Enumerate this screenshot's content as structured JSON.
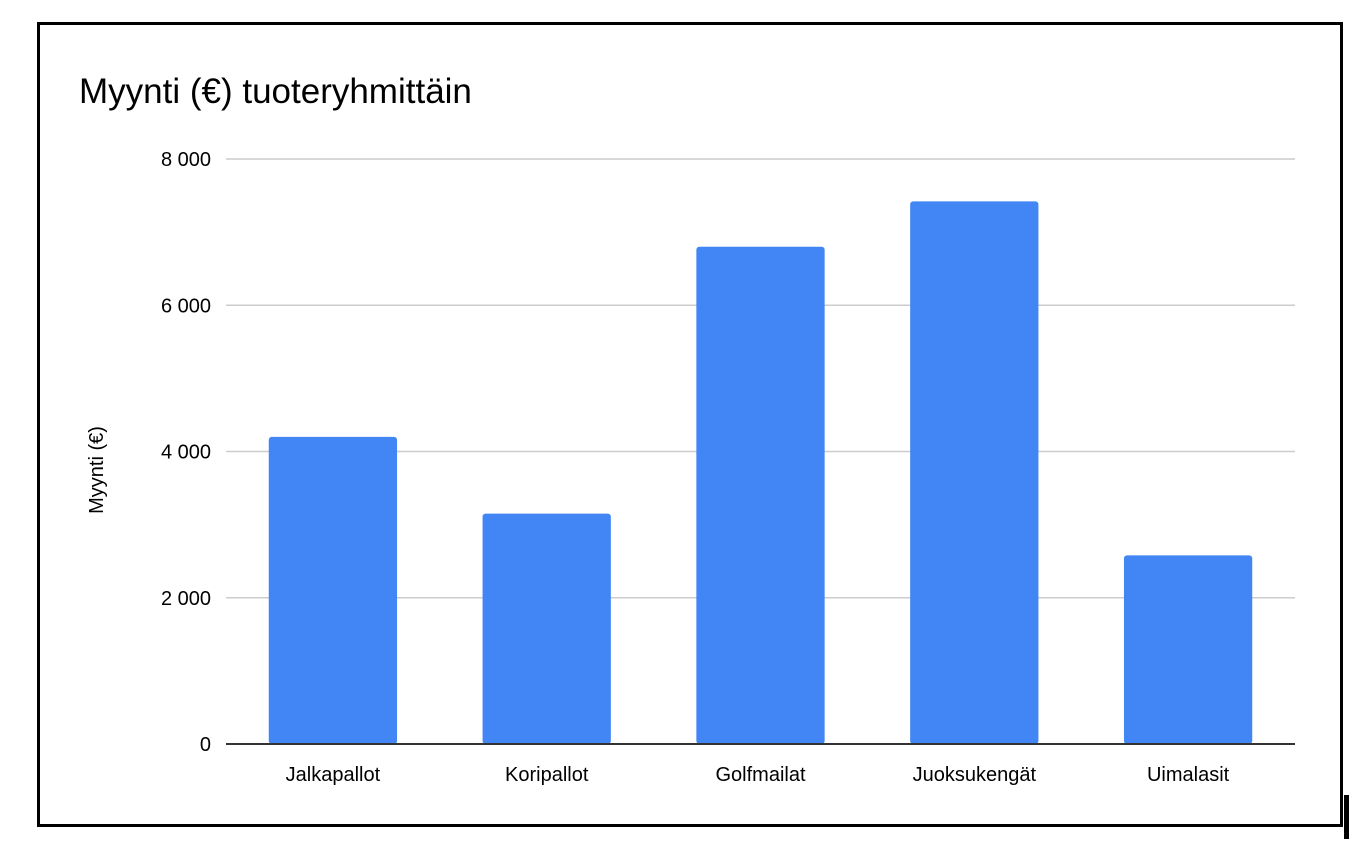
{
  "chart_data": {
    "type": "bar",
    "title": "Myynti (€) tuoteryhmittäin",
    "xlabel": "",
    "ylabel": "Myynti (€)",
    "categories": [
      "Jalkapallot",
      "Koripallot",
      "Golfmailat",
      "Juoksukengät",
      "Uimalasit"
    ],
    "values": [
      4200,
      3150,
      6800,
      7420,
      2580
    ],
    "ylim": [
      0,
      8000
    ],
    "yticks": [
      {
        "value": 0,
        "label": "0"
      },
      {
        "value": 2000,
        "label": "2 000"
      },
      {
        "value": 4000,
        "label": "4 000"
      },
      {
        "value": 6000,
        "label": "6 000"
      },
      {
        "value": 8000,
        "label": "8 000"
      }
    ],
    "grid": true,
    "legend": "none",
    "bar_color": "#4285f4",
    "grid_color": "#cccccc",
    "axis_color": "#333333"
  }
}
